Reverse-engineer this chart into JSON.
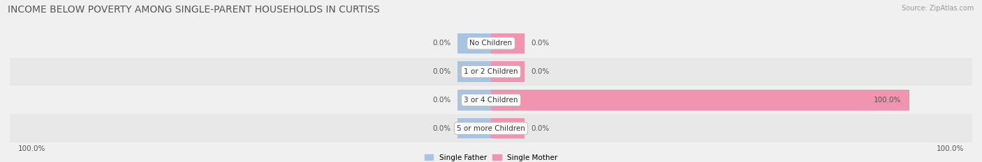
{
  "title": "INCOME BELOW POVERTY AMONG SINGLE-PARENT HOUSEHOLDS IN CURTISS",
  "source": "Source: ZipAtlas.com",
  "categories": [
    "No Children",
    "1 or 2 Children",
    "3 or 4 Children",
    "5 or more Children"
  ],
  "single_father": [
    0.0,
    0.0,
    0.0,
    0.0
  ],
  "single_mother": [
    0.0,
    0.0,
    100.0,
    0.0
  ],
  "father_color": "#a8c4e0",
  "mother_color": "#f094b0",
  "row_colors": [
    "#f0f0f0",
    "#e8e8e8",
    "#f0f0f0",
    "#e8e8e8"
  ],
  "bg_color": "#f0f0f0",
  "title_fontsize": 10,
  "source_fontsize": 7,
  "label_fontsize": 7.5,
  "cat_fontsize": 7.5,
  "stub_size": 8.0,
  "max_val": 100.0,
  "axis_label_left": "100.0%",
  "axis_label_right": "100.0%"
}
